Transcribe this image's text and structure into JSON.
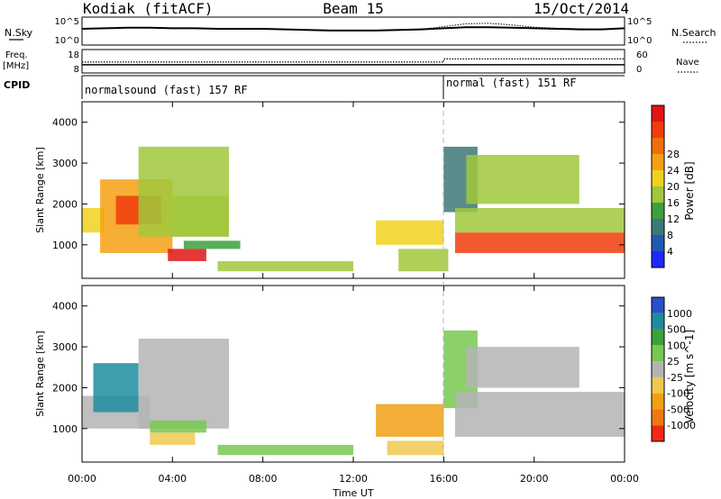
{
  "header": {
    "station": "Kodiak (fitACF)",
    "beam": "Beam 15",
    "date": "15/Oct/2014"
  },
  "noise_panel": {
    "left_label": "N.Sky",
    "left_ticks": [
      "10^5",
      "10^0"
    ],
    "right_label": "N.Search",
    "right_ticks": [
      "10^5",
      "10^0"
    ]
  },
  "freq_panel": {
    "left_label_1": "Freq.",
    "left_label_2": "[MHz]",
    "left_ticks": [
      "18",
      "8"
    ],
    "right_label": "Nave",
    "right_ticks": [
      "60",
      "0"
    ]
  },
  "cpid_panel": {
    "label": "CPID",
    "segments": [
      {
        "label": "normalsound (fast) 157 RF",
        "start_hour": 0
      },
      {
        "label": "normal (fast) 151 RF",
        "start_hour": 16
      }
    ]
  },
  "axes": {
    "xlabel": "Time UT",
    "xticks": [
      "00:00",
      "04:00",
      "08:00",
      "12:00",
      "16:00",
      "20:00",
      "00:00"
    ],
    "ylabel": "Slant Range [km]",
    "yticks": [
      "1000",
      "2000",
      "3000",
      "4000"
    ]
  },
  "power_scale": {
    "title": "Power [dB]",
    "ticks": [
      "4",
      "8",
      "12",
      "16",
      "20",
      "24",
      "28"
    ],
    "colors": [
      "#1e28ff",
      "#1e5ab4",
      "#3c7878",
      "#3ca03c",
      "#a0c83c",
      "#f0d21e",
      "#f5a014",
      "#f06e0a",
      "#f03c0a",
      "#e11414"
    ]
  },
  "velocity_scale": {
    "title": "Velocity [m s^-1]",
    "ticks": [
      "1000",
      "500",
      "100",
      "25",
      "-25",
      "-100",
      "-500",
      "-1000"
    ],
    "colors": [
      "#2850c8",
      "#1e8ca0",
      "#3ca03c",
      "#78c850",
      "#b4b4b4",
      "#f0c850",
      "#f0a014",
      "#f07814",
      "#f02814"
    ]
  },
  "chart_data": [
    {
      "type": "line",
      "title": "N.Sky / N.Search",
      "x_hours": [
        0,
        1,
        2,
        3,
        4,
        5,
        6,
        7,
        8,
        9,
        10,
        11,
        12,
        13,
        14,
        15,
        16,
        17,
        18,
        19,
        20,
        21,
        22,
        23,
        24
      ],
      "series": [
        {
          "name": "N.Sky",
          "values": [
            2.9,
            3.0,
            3.1,
            3.1,
            3.0,
            3.0,
            2.9,
            2.9,
            2.9,
            2.8,
            2.7,
            2.6,
            2.6,
            2.6,
            2.7,
            2.8,
            3.0,
            3.2,
            3.2,
            3.1,
            3.0,
            2.9,
            2.8,
            2.8,
            3.0
          ]
        },
        {
          "name": "N.Search",
          "values": [
            2.9,
            3.0,
            3.1,
            3.1,
            3.0,
            3.0,
            2.9,
            2.9,
            2.9,
            2.8,
            2.7,
            2.6,
            2.6,
            2.6,
            2.7,
            2.8,
            3.3,
            3.8,
            3.9,
            3.6,
            3.2,
            3.0,
            2.9,
            2.8,
            3.0
          ]
        }
      ],
      "ylim": [
        0,
        5
      ]
    },
    {
      "type": "line",
      "title": "Freq. / Nave",
      "x_hours": [
        0,
        16,
        16,
        24
      ],
      "series": [
        {
          "name": "Freq.",
          "values": [
            11.5,
            11.5,
            11.5,
            11.5
          ]
        },
        {
          "name": "Nave",
          "values": [
            28,
            28,
            36,
            36
          ]
        }
      ],
      "ylim": [
        8,
        18
      ]
    },
    {
      "type": "heatmap",
      "title": "Power [dB]",
      "xlim_hours": [
        0,
        24
      ],
      "ylim_km": [
        180,
        4500
      ],
      "patches": [
        {
          "t0": 0.0,
          "t1": 1.0,
          "r0": 1300,
          "r1": 1900,
          "value": 16
        },
        {
          "t0": 0.8,
          "t1": 4.0,
          "r0": 800,
          "r1": 2600,
          "value": 20
        },
        {
          "t0": 1.5,
          "t1": 3.5,
          "r0": 1500,
          "r1": 2200,
          "value": 26
        },
        {
          "t0": 2.5,
          "t1": 6.5,
          "r0": 1200,
          "r1": 3400,
          "value": 12
        },
        {
          "t0": 4.0,
          "t1": 6.5,
          "r0": 1200,
          "r1": 2200,
          "value": 14
        },
        {
          "t0": 3.8,
          "t1": 5.5,
          "r0": 600,
          "r1": 900,
          "value": 29
        },
        {
          "t0": 4.5,
          "t1": 7.0,
          "r0": 900,
          "r1": 1100,
          "value": 10
        },
        {
          "t0": 6.0,
          "t1": 12.0,
          "r0": 350,
          "r1": 600,
          "value": 14
        },
        {
          "t0": 13.0,
          "t1": 16.0,
          "r0": 1000,
          "r1": 1600,
          "value": 16
        },
        {
          "t0": 14.0,
          "t1": 16.2,
          "r0": 350,
          "r1": 900,
          "value": 14
        },
        {
          "t0": 16.0,
          "t1": 17.5,
          "r0": 1800,
          "r1": 3400,
          "value": 8
        },
        {
          "t0": 16.5,
          "t1": 24.0,
          "r0": 1300,
          "r1": 1900,
          "value": 14
        },
        {
          "t0": 16.5,
          "t1": 24.0,
          "r0": 800,
          "r1": 1300,
          "value": 26
        },
        {
          "t0": 17.0,
          "t1": 22.0,
          "r0": 2000,
          "r1": 3200,
          "value": 12
        }
      ]
    },
    {
      "type": "heatmap",
      "title": "Velocity [m s^-1]",
      "xlim_hours": [
        0,
        24
      ],
      "ylim_km": [
        180,
        4500
      ],
      "patches": [
        {
          "t0": 0.0,
          "t1": 3.0,
          "r0": 1000,
          "r1": 1800,
          "value": 0
        },
        {
          "t0": 0.5,
          "t1": 2.5,
          "r0": 1400,
          "r1": 2600,
          "value": 800
        },
        {
          "t0": 2.5,
          "t1": 6.5,
          "r0": 1000,
          "r1": 3200,
          "value": 0
        },
        {
          "t0": 3.0,
          "t1": 5.0,
          "r0": 600,
          "r1": 900,
          "value": -30
        },
        {
          "t0": 3.0,
          "t1": 5.5,
          "r0": 900,
          "r1": 1200,
          "value": 60
        },
        {
          "t0": 6.0,
          "t1": 12.0,
          "r0": 350,
          "r1": 600,
          "value": 60
        },
        {
          "t0": 13.0,
          "t1": 16.0,
          "r0": 800,
          "r1": 1600,
          "value": -300
        },
        {
          "t0": 13.5,
          "t1": 16.0,
          "r0": 350,
          "r1": 700,
          "value": -50
        },
        {
          "t0": 16.0,
          "t1": 17.5,
          "r0": 1500,
          "r1": 3400,
          "value": 80
        },
        {
          "t0": 16.5,
          "t1": 24.0,
          "r0": 800,
          "r1": 1900,
          "value": 0
        },
        {
          "t0": 17.0,
          "t1": 22.0,
          "r0": 2000,
          "r1": 3000,
          "value": 0
        }
      ]
    }
  ]
}
